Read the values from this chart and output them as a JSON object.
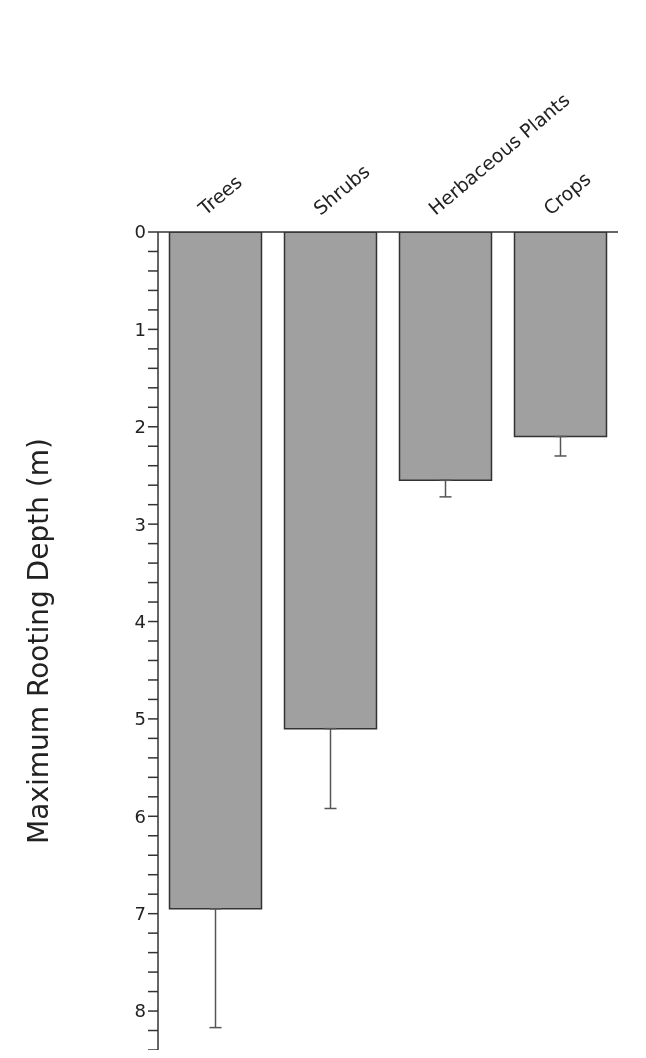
{
  "chart_data": {
    "type": "bar",
    "ylabel": "Maximum Rooting Depth (m)",
    "categories": [
      "Trees",
      "Shrubs",
      "Herbaceous Plants",
      "Crops"
    ],
    "values": [
      6.95,
      5.1,
      2.55,
      2.1
    ],
    "errors": [
      [
        6.95,
        8.17
      ],
      [
        5.1,
        5.92
      ],
      [
        2.55,
        2.72
      ],
      [
        2.1,
        2.3
      ]
    ],
    "color": "#a0a0a0",
    "ylim": [
      8.4,
      0
    ],
    "yticks": [
      0,
      {
        "value": 0.2,
        "label": null
      },
      {
        "value": 0.4,
        "label": null
      },
      {
        "value": 0.6,
        "label": null
      },
      {
        "value": 0.8,
        "label": null
      },
      1,
      {
        "value": 1.2,
        "label": null
      },
      {
        "value": 1.4,
        "label": null
      },
      {
        "value": 1.6,
        "label": null
      },
      {
        "value": 1.8,
        "label": null
      },
      2,
      {
        "value": 2.2,
        "label": null
      },
      {
        "value": 2.4,
        "label": null
      },
      {
        "value": 2.6,
        "label": null
      },
      {
        "value": 2.8,
        "label": null
      },
      3,
      {
        "value": 3.2,
        "label": null
      },
      {
        "value": 3.4,
        "label": null
      },
      {
        "value": 3.6,
        "label": null
      },
      {
        "value": 3.8,
        "label": null
      },
      4,
      {
        "value": 4.2,
        "label": null
      },
      {
        "value": 4.4,
        "label": null
      },
      {
        "value": 4.6,
        "label": null
      },
      {
        "value": 4.8,
        "label": null
      },
      5,
      {
        "value": 5.2,
        "label": null
      },
      {
        "value": 5.4,
        "label": null
      },
      {
        "value": 5.6,
        "label": null
      },
      {
        "value": 5.8,
        "label": null
      },
      6,
      {
        "value": 6.2,
        "label": null
      },
      {
        "value": 6.4,
        "label": null
      },
      {
        "value": 6.6,
        "label": null
      },
      {
        "value": 6.8,
        "label": null
      },
      7,
      {
        "value": 7.2,
        "label": null
      },
      {
        "value": 7.4,
        "label": null
      },
      {
        "value": 7.6,
        "label": null
      },
      {
        "value": 7.8,
        "label": null
      },
      8,
      {
        "value": 8.2,
        "label": null
      },
      {
        "value": 8.4,
        "label": null
      }
    ],
    "grid": false,
    "legend": false
  }
}
